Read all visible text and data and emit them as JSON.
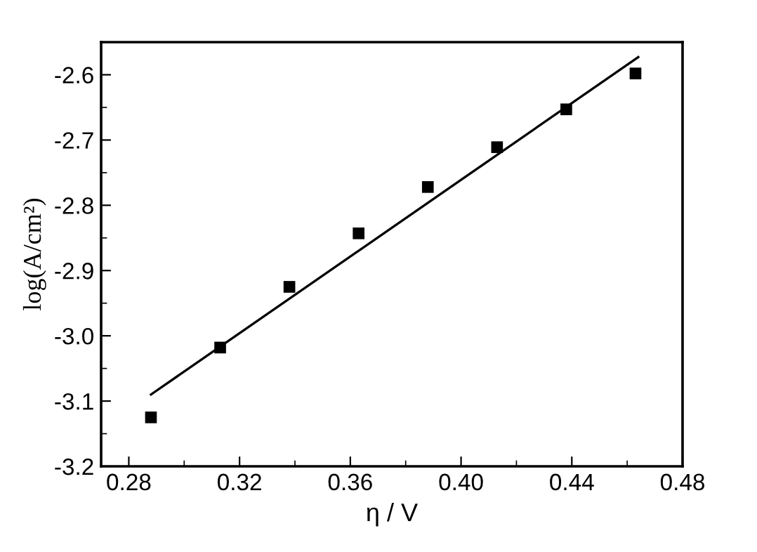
{
  "chart_data": {
    "type": "scatter",
    "xlabel": "η / V",
    "ylabel": "log(A/cm²)",
    "xlim": [
      0.27,
      0.48
    ],
    "xticks": [
      0.28,
      0.32,
      0.36,
      {
        "value": 0.4,
        "label": "0.40"
      },
      0.44,
      0.48
    ],
    "ylim": [
      -3.2,
      -2.55
    ],
    "yticks": [
      -3.2,
      -3.1,
      {
        "value": -3,
        "label": "-3.0"
      },
      -2.9,
      -2.8,
      -2.7,
      -2.6
    ],
    "grid": false,
    "legend": false,
    "marker": "square",
    "series": [
      {
        "color": "#000000",
        "x": [
          0.288,
          0.313,
          0.338,
          0.363,
          0.388,
          0.413,
          0.438,
          0.463
        ],
        "values": [
          -3.125,
          -3.018,
          -2.925,
          -2.843,
          -2.772,
          -2.711,
          -2.653,
          -2.598
        ]
      },
      {
        "type": "line",
        "color": "#000000",
        "line_style": "solid",
        "marker": "none",
        "x": [
          0.288,
          0.464
        ],
        "values": [
          -3.09,
          -2.573
        ]
      }
    ]
  }
}
